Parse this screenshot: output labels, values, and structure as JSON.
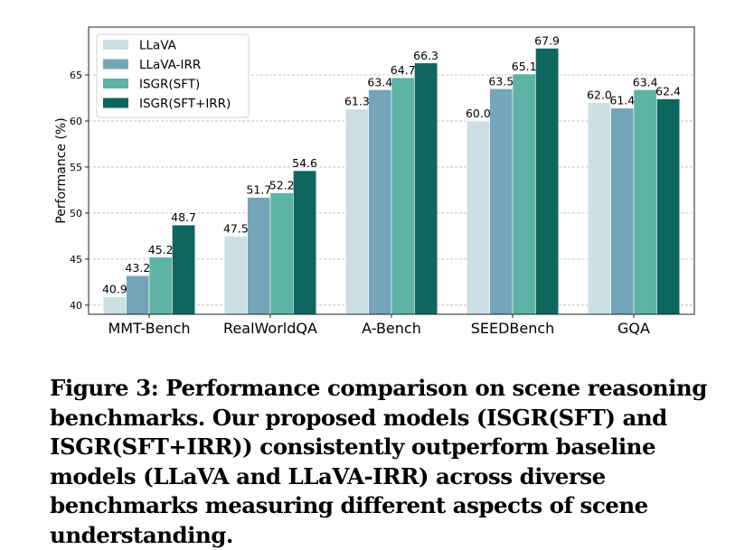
{
  "chart_data": {
    "type": "bar",
    "ylabel": "Performance (%)",
    "xlabel": "",
    "ylim": [
      39,
      70.2
    ],
    "yticks": [
      40,
      45,
      50,
      55,
      60,
      65
    ],
    "grid": "y-dashed",
    "legend_position": "top-left",
    "categories": [
      "MMT-Bench",
      "RealWorldQA",
      "A-Bench",
      "SEEDBench",
      "GQA"
    ],
    "series": [
      {
        "name": "LLaVA",
        "color": "#ccdfe4",
        "values": [
          40.9,
          47.5,
          61.3,
          60.0,
          62.0
        ]
      },
      {
        "name": "LLaVA-IRR",
        "color": "#74a5b9",
        "values": [
          43.2,
          51.7,
          63.4,
          63.5,
          61.4
        ]
      },
      {
        "name": "ISGR(SFT)",
        "color": "#5db3a6",
        "values": [
          45.2,
          52.2,
          64.7,
          65.1,
          63.4
        ]
      },
      {
        "name": "ISGR(SFT+IRR)",
        "color": "#0f665e",
        "values": [
          48.7,
          54.6,
          66.3,
          67.9,
          62.4
        ]
      }
    ]
  },
  "caption": "Figure 3: Performance comparison on scene reasoning benchmarks. Our proposed models (ISGR(SFT) and ISGR(SFT+IRR)) consistently outperform baseline models (LLaVA and LLaVA-IRR) across diverse benchmarks measuring different aspects of scene understanding."
}
